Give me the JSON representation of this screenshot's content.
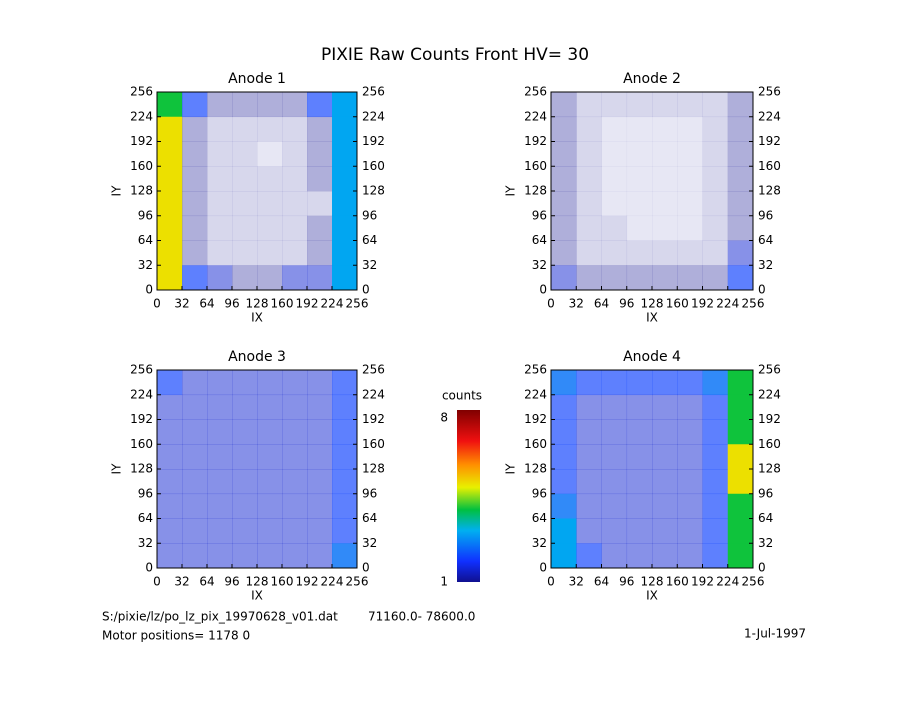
{
  "title": "PIXIE Raw Counts Front HV= 30",
  "chart_data": [
    {
      "type": "heatmap",
      "title": "Anode 1",
      "xlabel": "IX",
      "ylabel": "IY",
      "xlim": [
        0,
        256
      ],
      "ylim": [
        0,
        256
      ],
      "xticks": [
        0,
        32,
        64,
        96,
        128,
        160,
        192,
        224,
        256
      ],
      "yticks": [
        0,
        32,
        64,
        96,
        128,
        160,
        192,
        224,
        256
      ],
      "values": [
        [
          4,
          2,
          1,
          1,
          1,
          1,
          2,
          3
        ],
        [
          5,
          1,
          0.5,
          0.5,
          0.5,
          0.5,
          1,
          3
        ],
        [
          5,
          1,
          0.5,
          0.5,
          0.3,
          0.5,
          1,
          3
        ],
        [
          5,
          1,
          0.5,
          0.5,
          0.5,
          0.5,
          1,
          3
        ],
        [
          5,
          1,
          0.5,
          0.5,
          0.5,
          0.5,
          0.5,
          3
        ],
        [
          5,
          1,
          0.5,
          0.5,
          0.5,
          0.5,
          1,
          3
        ],
        [
          5,
          1,
          0.5,
          0.5,
          0.5,
          0.5,
          1,
          3
        ],
        [
          5,
          2,
          1.5,
          1,
          1,
          1.5,
          1.5,
          3
        ]
      ]
    },
    {
      "type": "heatmap",
      "title": "Anode 2",
      "xlabel": "IX",
      "ylabel": "IY",
      "xlim": [
        0,
        256
      ],
      "ylim": [
        0,
        256
      ],
      "xticks": [
        0,
        32,
        64,
        96,
        128,
        160,
        192,
        224,
        256
      ],
      "yticks": [
        0,
        32,
        64,
        96,
        128,
        160,
        192,
        224,
        256
      ],
      "values": [
        [
          1,
          0.5,
          0.5,
          0.5,
          0.5,
          0.5,
          0.5,
          1
        ],
        [
          1,
          0.5,
          0.3,
          0.3,
          0.3,
          0.3,
          0.5,
          1
        ],
        [
          1,
          0.5,
          0.3,
          0.3,
          0.3,
          0.3,
          0.5,
          1
        ],
        [
          1,
          0.5,
          0.3,
          0.3,
          0.3,
          0.3,
          0.5,
          1
        ],
        [
          1,
          0.5,
          0.3,
          0.3,
          0.3,
          0.3,
          0.5,
          1
        ],
        [
          1,
          0.5,
          0.5,
          0.3,
          0.3,
          0.3,
          0.5,
          1
        ],
        [
          1,
          0.5,
          0.5,
          0.5,
          0.5,
          0.5,
          0.5,
          1.5
        ],
        [
          1.5,
          1,
          1,
          1,
          1,
          1,
          1,
          2
        ]
      ]
    },
    {
      "type": "heatmap",
      "title": "Anode 3",
      "xlabel": "IX",
      "ylabel": "IY",
      "xlim": [
        0,
        256
      ],
      "ylim": [
        0,
        256
      ],
      "xticks": [
        0,
        32,
        64,
        96,
        128,
        160,
        192,
        224,
        256
      ],
      "yticks": [
        0,
        32,
        64,
        96,
        128,
        160,
        192,
        224,
        256
      ],
      "values": [
        [
          2,
          1.5,
          1.5,
          1.5,
          1.5,
          1.5,
          1.5,
          2
        ],
        [
          1.5,
          1.5,
          1.5,
          1.5,
          1.5,
          1.5,
          1.5,
          2
        ],
        [
          1.5,
          1.5,
          1.5,
          1.5,
          1.5,
          1.5,
          1.5,
          2
        ],
        [
          1.5,
          1.5,
          1.5,
          1.5,
          1.5,
          1.5,
          1.5,
          2
        ],
        [
          1.5,
          1.5,
          1.5,
          1.5,
          1.5,
          1.5,
          1.5,
          2
        ],
        [
          1.5,
          1.5,
          1.5,
          1.5,
          1.5,
          1.5,
          1.5,
          2
        ],
        [
          1.5,
          1.5,
          1.5,
          1.5,
          1.5,
          1.5,
          1.5,
          2
        ],
        [
          1.5,
          1.5,
          1.5,
          1.5,
          1.5,
          1.5,
          1.5,
          2.5
        ]
      ]
    },
    {
      "type": "heatmap",
      "title": "Anode 4",
      "xlabel": "IX",
      "ylabel": "IY",
      "xlim": [
        0,
        256
      ],
      "ylim": [
        0,
        256
      ],
      "xticks": [
        0,
        32,
        64,
        96,
        128,
        160,
        192,
        224,
        256
      ],
      "yticks": [
        0,
        32,
        64,
        96,
        128,
        160,
        192,
        224,
        256
      ],
      "values": [
        [
          2.5,
          2,
          2,
          2,
          2,
          2,
          2.5,
          4
        ],
        [
          2,
          1.5,
          1.5,
          1.5,
          1.5,
          1.5,
          2,
          4
        ],
        [
          2,
          1.5,
          1.5,
          1.5,
          1.5,
          1.5,
          2,
          4
        ],
        [
          2,
          1.5,
          1.5,
          1.5,
          1.5,
          1.5,
          2,
          5
        ],
        [
          2,
          1.5,
          1.5,
          1.5,
          1.5,
          1.5,
          2,
          5
        ],
        [
          2.5,
          1.5,
          1.5,
          1.5,
          1.5,
          1.5,
          2,
          4
        ],
        [
          3,
          1.5,
          1.5,
          1.5,
          1.5,
          1.5,
          2,
          4
        ],
        [
          3,
          2,
          1.5,
          1.5,
          1.5,
          1.5,
          2,
          4
        ]
      ]
    }
  ],
  "colorbar": {
    "label": "counts",
    "lim": [
      1,
      8
    ],
    "ticks": [
      1,
      8
    ]
  },
  "footer": {
    "file": "S:/pixie/lz/po_lz_pix_19970628_v01.dat",
    "range": "71160.0- 78600.0",
    "motor": "Motor positions= 1178 0",
    "date": "1-Jul-1997"
  }
}
